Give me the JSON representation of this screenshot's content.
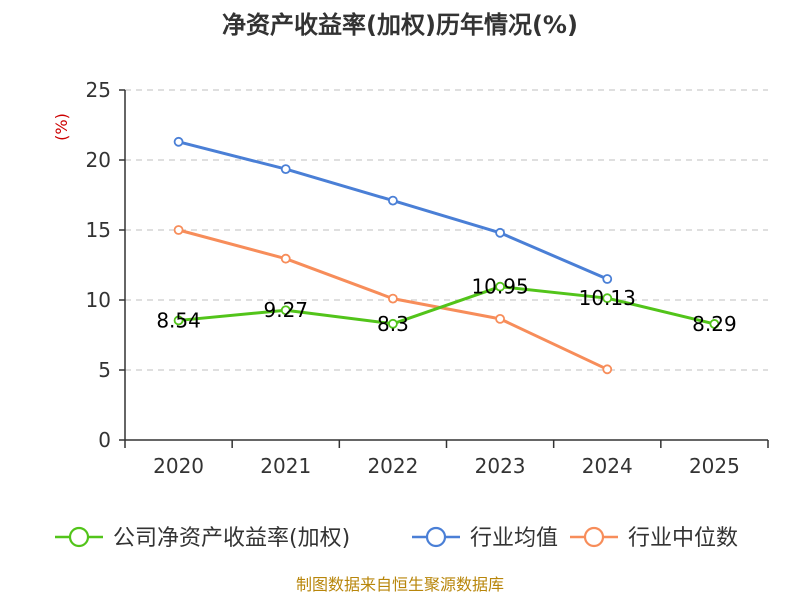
{
  "chart_data": {
    "type": "line",
    "title": "净资产收益率(加权)历年情况(%)",
    "ylabel": "(%)",
    "xlabel": "",
    "ylim": [
      0,
      25
    ],
    "yticks": [
      0,
      5,
      10,
      15,
      20,
      25
    ],
    "categories": [
      "2020",
      "2021",
      "2022",
      "2023",
      "2024",
      "2025"
    ],
    "grid": true,
    "legend_position": "bottom",
    "series": [
      {
        "name": "公司净资产收益率(加权)",
        "color": "#52c41a",
        "values": [
          8.54,
          9.27,
          8.3,
          10.95,
          10.13,
          8.29
        ],
        "labels": [
          "8.54",
          "9.27",
          "8.3",
          "10.95",
          "10.13",
          "8.29"
        ],
        "show_labels": true
      },
      {
        "name": "行业均值",
        "color": "#4a7fd6",
        "values": [
          21.3,
          19.35,
          17.1,
          14.8,
          11.5,
          null
        ],
        "show_labels": false
      },
      {
        "name": "行业中位数",
        "color": "#f78d5a",
        "values": [
          15.0,
          12.95,
          10.1,
          8.65,
          5.05,
          null
        ],
        "show_labels": false
      }
    ],
    "source": "制图数据来自恒生聚源数据库"
  }
}
